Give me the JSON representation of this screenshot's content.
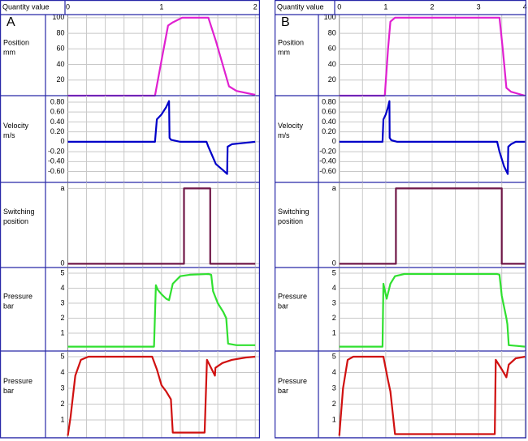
{
  "panels": [
    {
      "label": "A",
      "header": "Quantity value"
    },
    {
      "label": "B",
      "header": "Quantity value"
    }
  ],
  "chart_data": [
    {
      "type": "line",
      "ylabel": [
        "Position",
        "mm"
      ],
      "xlim": [
        -0.03,
        2.05
      ],
      "xticks": [
        0,
        1,
        2
      ],
      "ylim": [
        0,
        104
      ],
      "yticks": [
        20,
        40,
        60,
        80,
        100
      ],
      "color": "#e020d0",
      "x": [
        0,
        0.93,
        1.0,
        1.07,
        1.12,
        1.22,
        1.5,
        1.58,
        1.72,
        1.8,
        2.0
      ],
      "values": [
        0,
        0,
        45,
        90,
        94,
        100,
        100,
        70,
        12,
        6,
        1
      ]
    },
    {
      "type": "line",
      "ylabel": [
        "Velocity",
        "m/s"
      ],
      "xlim": [
        -0.03,
        2.05
      ],
      "xticks": [
        0,
        1,
        2
      ],
      "ylim": [
        -0.82,
        0.93
      ],
      "yticks": [
        {
          "value": 0.8,
          "label": "0.80"
        },
        {
          "value": 0.6,
          "label": "0.60"
        },
        {
          "value": 0.4,
          "label": "0.40"
        },
        {
          "value": 0.2,
          "label": "0.20"
        },
        0,
        {
          "value": -0.2,
          "label": "-0.20"
        },
        {
          "value": -0.4,
          "label": "-0.40"
        },
        {
          "value": -0.6,
          "label": "-0.60"
        }
      ],
      "color": "#0000c8",
      "x": [
        0,
        0.93,
        0.95,
        1.0,
        1.05,
        1.08,
        1.085,
        1.1,
        1.2,
        1.48,
        1.5,
        1.58,
        1.66,
        1.7,
        1.705,
        1.75,
        1.85,
        2.0
      ],
      "values": [
        0,
        0,
        0.45,
        0.55,
        0.7,
        0.82,
        0.08,
        0.04,
        0,
        0,
        -0.1,
        -0.45,
        -0.58,
        -0.65,
        -0.1,
        -0.05,
        -0.03,
        0
      ]
    },
    {
      "type": "line",
      "ylabel": [
        "Switching",
        "position"
      ],
      "xlim": [
        -0.03,
        2.05
      ],
      "xticks": [
        0,
        1,
        2
      ],
      "ylim": [
        -0.05,
        1.08
      ],
      "yticks": [
        {
          "value": 1,
          "label": "a"
        },
        0
      ],
      "color": "#701848",
      "x": [
        0,
        1.24,
        1.24,
        1.52,
        1.52,
        2.0
      ],
      "values": [
        0,
        0,
        1,
        1,
        0,
        0
      ]
    },
    {
      "type": "line",
      "ylabel": [
        "Pressure",
        "bar"
      ],
      "xlim": [
        -0.03,
        2.05
      ],
      "xticks": [
        0,
        1,
        2
      ],
      "ylim": [
        -0.19,
        5.38
      ],
      "yticks": [
        1,
        2,
        3,
        4,
        5
      ],
      "color": "#30e030",
      "x": [
        0,
        0.92,
        0.94,
        0.96,
        1.0,
        1.05,
        1.08,
        1.12,
        1.2,
        1.3,
        1.5,
        1.53,
        1.55,
        1.6,
        1.66,
        1.69,
        1.71,
        1.8,
        2.0
      ],
      "values": [
        0.1,
        0.1,
        4.2,
        3.9,
        3.6,
        3.3,
        3.2,
        4.3,
        4.8,
        4.9,
        4.95,
        4.9,
        3.8,
        3.0,
        2.4,
        2.0,
        0.3,
        0.2,
        0.2
      ]
    },
    {
      "type": "line",
      "ylabel": [
        "Pressure",
        "bar"
      ],
      "xlim": [
        -0.03,
        2.05
      ],
      "xticks": [
        0,
        1,
        2
      ],
      "ylim": [
        -0.13,
        5.36
      ],
      "yticks": [
        1,
        2,
        3,
        4,
        5
      ],
      "color": "#d01010",
      "x": [
        0,
        0.03,
        0.08,
        0.14,
        0.22,
        0.9,
        0.95,
        1.0,
        1.05,
        1.1,
        1.12,
        1.46,
        1.485,
        1.52,
        1.57,
        1.575,
        1.65,
        1.75,
        1.9,
        2.0
      ],
      "values": [
        0,
        1.2,
        3.8,
        4.8,
        5.0,
        5.0,
        4.2,
        3.2,
        2.8,
        2.3,
        0.2,
        0.2,
        4.8,
        4.4,
        3.8,
        4.3,
        4.6,
        4.8,
        4.95,
        5.0
      ]
    },
    {
      "type": "line",
      "ylabel": [
        "Position",
        "mm"
      ],
      "xlim": [
        -0.1,
        4.03
      ],
      "xticks": [
        0,
        1,
        2,
        3,
        4
      ],
      "ylim": [
        0,
        104
      ],
      "yticks": [
        20,
        40,
        60,
        80,
        100
      ],
      "color": "#e020d0",
      "x": [
        0,
        0.98,
        1.05,
        1.1,
        1.2,
        3.45,
        3.52,
        3.6,
        3.7,
        4.0
      ],
      "values": [
        0,
        0,
        60,
        95,
        100,
        100,
        60,
        10,
        5,
        0
      ]
    },
    {
      "type": "line",
      "ylabel": [
        "Velocity",
        "m/s"
      ],
      "xlim": [
        -0.1,
        4.03
      ],
      "xticks": [
        0,
        1,
        2,
        3,
        4
      ],
      "ylim": [
        -0.82,
        0.93
      ],
      "yticks": [
        {
          "value": 0.8,
          "label": "0.80"
        },
        {
          "value": 0.6,
          "label": "0.60"
        },
        {
          "value": 0.4,
          "label": "0.40"
        },
        {
          "value": 0.2,
          "label": "0.20"
        },
        0,
        {
          "value": -0.2,
          "label": "-0.20"
        },
        {
          "value": -0.4,
          "label": "-0.40"
        },
        {
          "value": -0.6,
          "label": "-0.60"
        }
      ],
      "color": "#0000c8",
      "x": [
        0,
        0.93,
        0.95,
        1.0,
        1.05,
        1.08,
        1.085,
        1.12,
        1.25,
        3.4,
        3.45,
        3.55,
        3.63,
        3.64,
        3.7,
        3.8,
        4.0
      ],
      "values": [
        0,
        0,
        0.45,
        0.55,
        0.7,
        0.82,
        0.08,
        0.03,
        0,
        0,
        -0.2,
        -0.5,
        -0.65,
        -0.1,
        -0.05,
        0,
        0
      ]
    },
    {
      "type": "line",
      "ylabel": [
        "Switching",
        "position"
      ],
      "xlim": [
        -0.1,
        4.03
      ],
      "xticks": [
        0,
        1,
        2,
        3,
        4
      ],
      "ylim": [
        -0.05,
        1.08
      ],
      "yticks": [
        {
          "value": 1,
          "label": "a"
        },
        0
      ],
      "color": "#701848",
      "x": [
        0,
        1.22,
        1.22,
        3.5,
        3.5,
        4.0
      ],
      "values": [
        0,
        0,
        1,
        1,
        0,
        0
      ]
    },
    {
      "type": "line",
      "ylabel": [
        "Pressure",
        "bar"
      ],
      "xlim": [
        -0.1,
        4.03
      ],
      "xticks": [
        0,
        1,
        2,
        3,
        4
      ],
      "ylim": [
        -0.19,
        5.38
      ],
      "yticks": [
        1,
        2,
        3,
        4,
        5
      ],
      "color": "#30e030",
      "x": [
        0,
        0.93,
        0.95,
        1.02,
        1.1,
        1.2,
        1.4,
        3.4,
        3.45,
        3.5,
        3.6,
        3.62,
        3.65,
        4.0
      ],
      "values": [
        0.1,
        0.1,
        4.3,
        3.3,
        4.3,
        4.8,
        4.95,
        4.95,
        4.9,
        3.5,
        2.0,
        1.6,
        0.2,
        0.1
      ]
    },
    {
      "type": "line",
      "ylabel": [
        "Pressure",
        "bar"
      ],
      "xlim": [
        -0.1,
        4.03
      ],
      "xticks": [
        0,
        1,
        2,
        3,
        4
      ],
      "ylim": [
        -0.13,
        5.36
      ],
      "yticks": [
        1,
        2,
        3,
        4,
        5
      ],
      "color": "#d01010",
      "x": [
        0,
        0.08,
        0.18,
        0.3,
        0.95,
        1.05,
        1.1,
        1.2,
        3.35,
        3.37,
        3.5,
        3.6,
        3.65,
        3.8,
        4.0
      ],
      "values": [
        0,
        3.0,
        4.8,
        5.0,
        5.0,
        3.5,
        2.8,
        0.1,
        0.1,
        4.8,
        4.2,
        3.7,
        4.5,
        4.9,
        5.0
      ]
    }
  ]
}
